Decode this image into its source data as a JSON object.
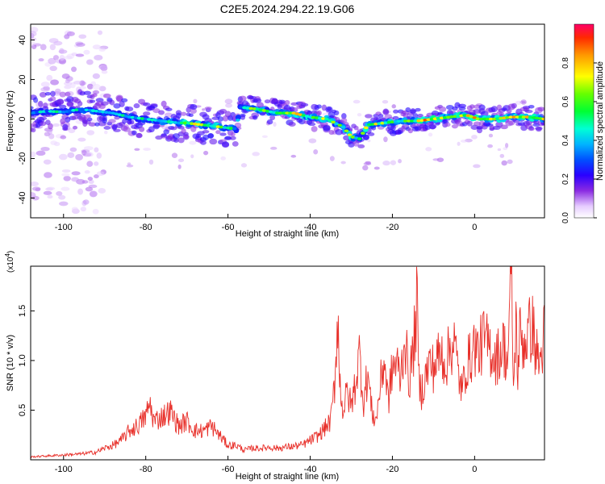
{
  "title": "C2E5.2024.294.22.19.G06",
  "chart_data": [
    {
      "type": "heatmap",
      "xlabel": "Height of straight line (km)",
      "ylabel": "Frequency (Hz)",
      "xlim": [
        -108,
        17
      ],
      "ylim": [
        -50,
        48
      ],
      "x_ticks": [
        -100,
        -80,
        -60,
        -40,
        -20,
        0
      ],
      "y_ticks": [
        40,
        20,
        0,
        -20,
        -40
      ],
      "grid": false,
      "colorbar": {
        "label": "Normalized spectral amplitude",
        "range": [
          0.0,
          1.0
        ],
        "ticks": [
          "0.0",
          "0.2",
          "0.4",
          "0.6",
          "0.8"
        ],
        "tick_values": [
          0.0,
          0.2,
          0.4,
          0.6,
          0.8
        ],
        "colormap": [
          "#ffffff",
          "#d9b3ff",
          "#8a2be2",
          "#3a00ff",
          "#0000ff",
          "#00bfff",
          "#00ffd5",
          "#00ff00",
          "#aaff00",
          "#ffff00",
          "#ff8c00",
          "#ff0000"
        ]
      },
      "ridge": [
        {
          "x": -108,
          "y": 3,
          "amp": 0.45
        },
        {
          "x": -104,
          "y": 4,
          "amp": 0.5
        },
        {
          "x": -100,
          "y": 3.5,
          "amp": 0.5
        },
        {
          "x": -96,
          "y": 5,
          "amp": 0.55
        },
        {
          "x": -92,
          "y": 4,
          "amp": 0.55
        },
        {
          "x": -88,
          "y": 3,
          "amp": 0.5
        },
        {
          "x": -84,
          "y": 1,
          "amp": 0.5
        },
        {
          "x": -80,
          "y": 0,
          "amp": 0.55
        },
        {
          "x": -76,
          "y": -1,
          "amp": 0.6
        },
        {
          "x": -72,
          "y": -2,
          "amp": 0.65
        },
        {
          "x": -70,
          "y": -2,
          "amp": 0.9
        },
        {
          "x": -66,
          "y": -3,
          "amp": 0.7
        },
        {
          "x": -62,
          "y": -4,
          "amp": 0.8
        },
        {
          "x": -58,
          "y": -5,
          "amp": 0.5
        },
        {
          "x": -57,
          "y": 6,
          "amp": 0.5
        },
        {
          "x": -53,
          "y": 5,
          "amp": 0.75
        },
        {
          "x": -48,
          "y": 3,
          "amp": 0.6
        },
        {
          "x": -44,
          "y": 3,
          "amp": 0.85
        },
        {
          "x": -40,
          "y": 1,
          "amp": 0.8
        },
        {
          "x": -36,
          "y": 0,
          "amp": 0.7
        },
        {
          "x": -32,
          "y": -4,
          "amp": 0.6
        },
        {
          "x": -30,
          "y": -9,
          "amp": 0.8
        },
        {
          "x": -28,
          "y": -10,
          "amp": 0.6
        },
        {
          "x": -26,
          "y": -3,
          "amp": 0.85
        },
        {
          "x": -22,
          "y": -2,
          "amp": 0.7
        },
        {
          "x": -18,
          "y": -1,
          "amp": 0.7
        },
        {
          "x": -14,
          "y": -1,
          "amp": 0.8
        },
        {
          "x": -10,
          "y": 0,
          "amp": 0.95
        },
        {
          "x": -6,
          "y": 1,
          "amp": 0.8
        },
        {
          "x": -2,
          "y": 2,
          "amp": 0.85
        },
        {
          "x": 1,
          "y": 0,
          "amp": 0.9
        },
        {
          "x": 5,
          "y": 0,
          "amp": 0.85
        },
        {
          "x": 9,
          "y": 1,
          "amp": 0.9
        },
        {
          "x": 13,
          "y": 1,
          "amp": 0.8
        },
        {
          "x": 17,
          "y": 0,
          "amp": 0.8
        }
      ]
    },
    {
      "type": "line",
      "xlabel": "Height of straight line (km)",
      "ylabel": "SNR (10 * v/v)",
      "y_multiplier": "(x10",
      "y_multiplier_exp": "4",
      "y_multiplier_close": ")",
      "xlim": [
        -108,
        17
      ],
      "ylim": [
        0,
        1.95
      ],
      "x_ticks": [
        -100,
        -80,
        -60,
        -40,
        -20,
        0
      ],
      "y_ticks": [
        0.5,
        1.0,
        1.5
      ],
      "y_tick_labels": [
        "0.5",
        "1.0",
        "1.5"
      ],
      "grid": false,
      "line_color": "#e8302a",
      "series": [
        {
          "x": [
            -108,
            -104,
            -100,
            -96,
            -92,
            -90,
            -88,
            -86,
            -84,
            -82,
            -80,
            -79,
            -78,
            -76,
            -74,
            -72,
            -70,
            -68,
            -66,
            -64,
            -62,
            -60,
            -58,
            -56,
            -54,
            -52,
            -50,
            -48,
            -46,
            -44,
            -42,
            -40,
            -38,
            -36,
            -35,
            -34,
            -33.2,
            -33,
            -32,
            -31,
            -30,
            -29,
            -28,
            -27,
            -26,
            -25,
            -24,
            -23,
            -22,
            -21,
            -20,
            -19,
            -18,
            -17,
            -16,
            -15,
            -14,
            -13.5,
            -13,
            -12,
            -11,
            -10,
            -9,
            -8,
            -7,
            -6,
            -5,
            -4,
            -3,
            -2,
            -1,
            0,
            1,
            2,
            3,
            4,
            5,
            6,
            7,
            8,
            9,
            9.5,
            10,
            10.5,
            11,
            12,
            13,
            14,
            15,
            16,
            17
          ],
          "y": [
            0.03,
            0.04,
            0.05,
            0.06,
            0.08,
            0.12,
            0.15,
            0.2,
            0.3,
            0.35,
            0.45,
            0.58,
            0.4,
            0.45,
            0.5,
            0.35,
            0.4,
            0.3,
            0.3,
            0.35,
            0.25,
            0.15,
            0.15,
            0.1,
            0.12,
            0.12,
            0.13,
            0.12,
            0.13,
            0.14,
            0.15,
            0.2,
            0.25,
            0.35,
            0.4,
            0.8,
            1.65,
            0.9,
            0.5,
            0.7,
            0.55,
            0.8,
            1.1,
            0.6,
            0.9,
            0.5,
            0.4,
            0.75,
            1.05,
            0.6,
            0.95,
            1.0,
            0.85,
            1.3,
            0.8,
            1.1,
            1.62,
            0.8,
            0.7,
            0.85,
            1.0,
            0.95,
            1.05,
            1.1,
            1.0,
            1.15,
            1.25,
            0.9,
            0.7,
            1.0,
            1.05,
            1.2,
            1.1,
            1.25,
            1.2,
            1.15,
            1.05,
            1.1,
            1.2,
            1.0,
            1.95,
            0.6,
            1.5,
            0.9,
            1.3,
            1.2,
            1.3,
            1.4,
            1.1,
            1.0,
            1.35
          ]
        }
      ]
    }
  ]
}
